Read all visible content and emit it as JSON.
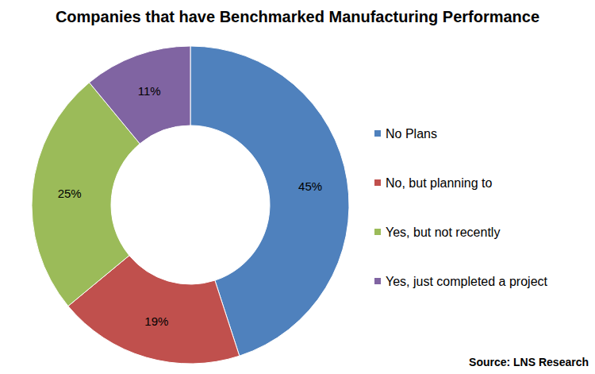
{
  "chart_data": {
    "type": "pie",
    "title": "Companies that have Benchmarked Manufacturing Performance",
    "annotation": "Source: LNS Research",
    "categories": [
      "No Plans",
      "No, but planning to",
      "Yes, but not recently",
      "Yes, just completed a project"
    ],
    "values": [
      45,
      19,
      25,
      11
    ],
    "value_labels": [
      "45%",
      "19%",
      "25%",
      "11%"
    ],
    "colors": [
      "#4f81bd",
      "#c0504d",
      "#9bbb59",
      "#8064a2"
    ],
    "data_labels": true,
    "legend": "right"
  }
}
